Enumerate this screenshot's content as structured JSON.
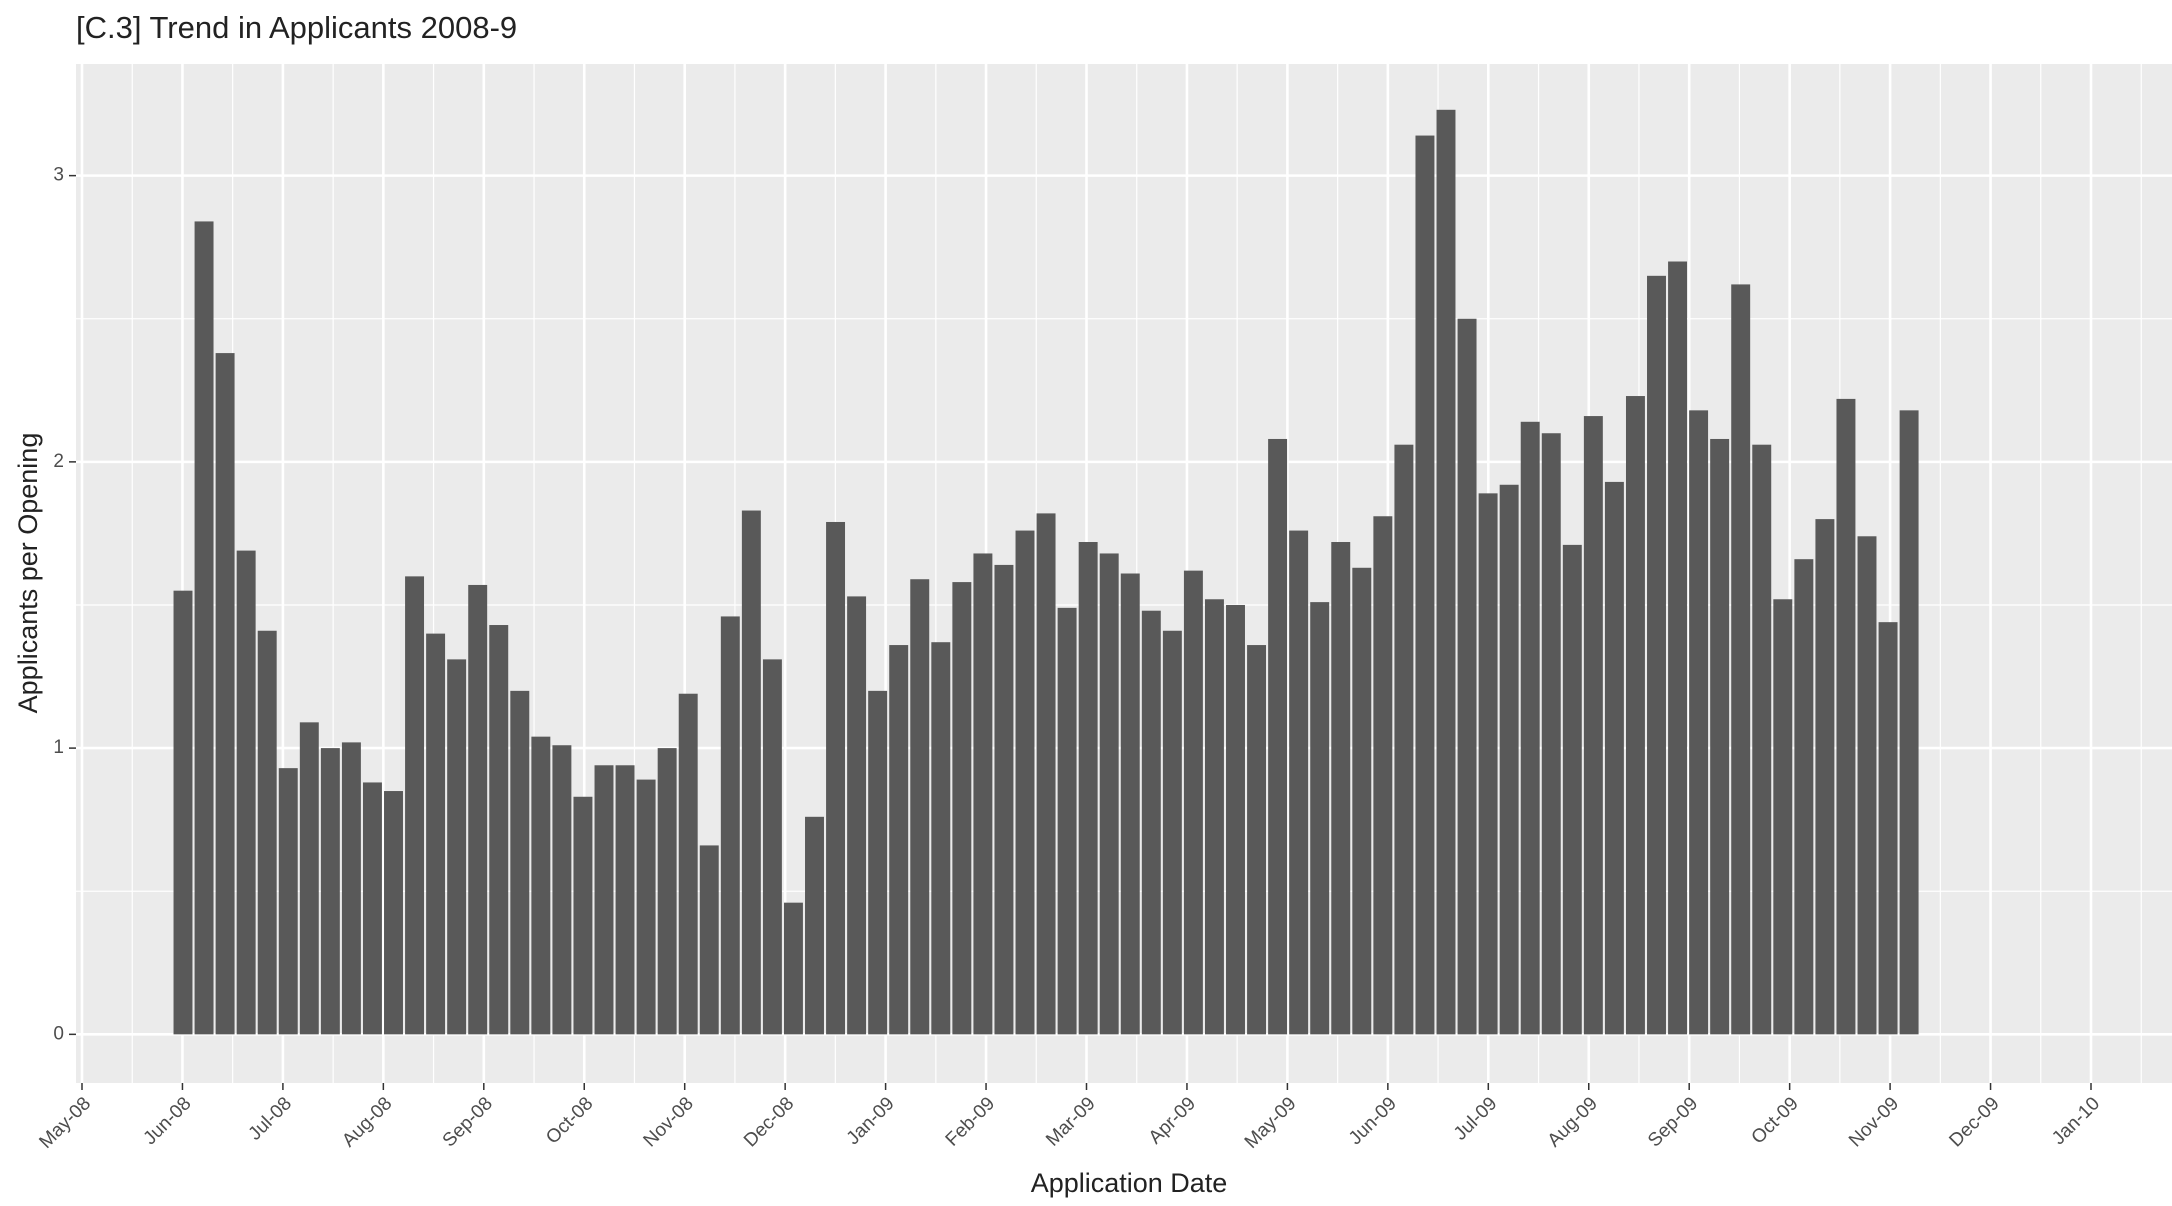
{
  "chart_data": {
    "type": "bar",
    "title": "[C.3] Trend in Applicants 2008-9",
    "x_label": "Application Date",
    "y_label": "Applicants per Opening",
    "color": "#595959",
    "grid": true,
    "ylim": [
      -0.17,
      3.39
    ],
    "yticks": [
      0,
      1,
      2,
      3
    ],
    "xticks": [
      "May-08",
      "Jun-08",
      "Jul-08",
      "Aug-08",
      "Sep-08",
      "Oct-08",
      "Nov-08",
      "Dec-08",
      "Jan-09",
      "Feb-09",
      "Mar-09",
      "Apr-09",
      "May-09",
      "Jun-09",
      "Jul-09",
      "Aug-09",
      "Sep-09",
      "Oct-09",
      "Nov-09",
      "Dec-09",
      "Jan-10"
    ],
    "categories": [
      null,
      null,
      null,
      null,
      null,
      null,
      null,
      null,
      null,
      null,
      null,
      null,
      null,
      null,
      null,
      null,
      null,
      null,
      null,
      null,
      null,
      null,
      null,
      null,
      null,
      null,
      null,
      null,
      null,
      null,
      null,
      null,
      null,
      null,
      null,
      null,
      null,
      null,
      null,
      null,
      null,
      null,
      null,
      null,
      null,
      null,
      null,
      null,
      null,
      null,
      null,
      null,
      null,
      null,
      null,
      null,
      null,
      null,
      null,
      null,
      null,
      null,
      null,
      null,
      null,
      null,
      null,
      null,
      null,
      null,
      null,
      null,
      null,
      null,
      null,
      null,
      null,
      null,
      null,
      null,
      null,
      null,
      null
    ],
    "values": [
      1.55,
      2.84,
      2.38,
      1.69,
      1.41,
      0.93,
      1.09,
      1.0,
      1.02,
      0.88,
      0.85,
      1.6,
      1.4,
      1.31,
      1.57,
      1.43,
      1.2,
      1.04,
      1.01,
      0.83,
      0.94,
      0.94,
      0.89,
      1.0,
      1.19,
      0.66,
      1.46,
      1.83,
      1.31,
      0.46,
      0.76,
      1.79,
      1.53,
      1.2,
      1.36,
      1.59,
      1.37,
      1.58,
      1.68,
      1.64,
      1.76,
      1.82,
      1.49,
      1.72,
      1.68,
      1.61,
      1.48,
      1.41,
      1.62,
      1.52,
      1.5,
      1.36,
      2.08,
      1.76,
      1.51,
      1.72,
      1.63,
      1.81,
      2.06,
      3.14,
      3.23,
      2.5,
      1.89,
      1.92,
      2.14,
      2.1,
      1.71,
      2.16,
      1.93,
      2.23,
      2.65,
      2.7,
      2.18,
      2.08,
      2.62,
      2.06,
      1.52,
      1.66,
      1.8,
      2.22,
      1.74,
      1.44,
      2.18
    ]
  }
}
